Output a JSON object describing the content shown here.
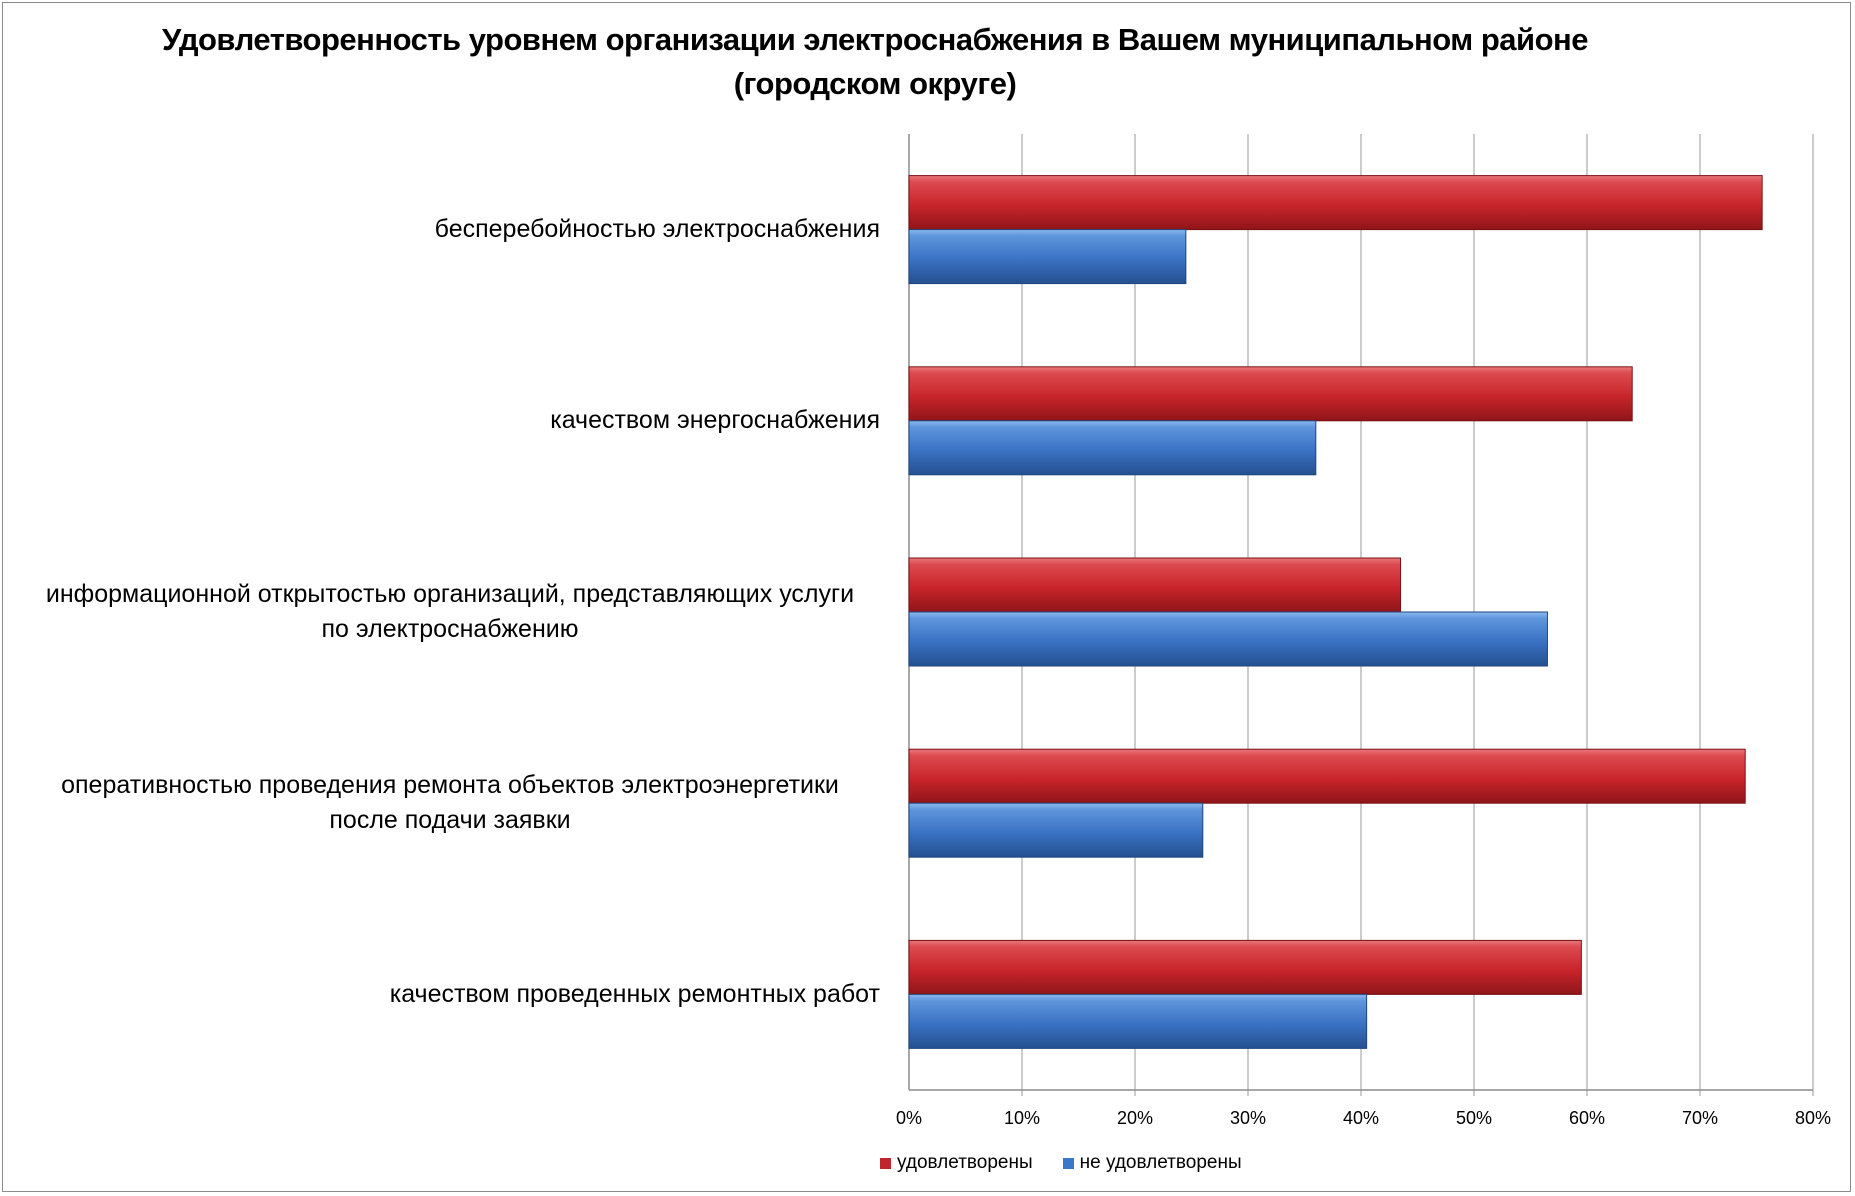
{
  "chart_data": {
    "type": "bar",
    "orientation": "horizontal",
    "title": "Удовлетворенность уровнем организации электроснабжения в Вашем муниципальном районе (городском округе)",
    "categories": [
      "бесперебойностью  электроснабжения",
      "качеством энергоснабжения",
      "информационной открытостью организаций, представляющих услуги по электроснабжению",
      "оперативностью проведения ремонта объектов электроэнергетики после подачи заявки",
      "качеством проведенных ремонтных работ"
    ],
    "series": [
      {
        "name": "удовлетворены",
        "color": "#c0272d",
        "values": [
          75.5,
          64,
          43.5,
          74,
          59.5
        ]
      },
      {
        "name": "не удовлетворены",
        "color": "#3a78c8",
        "values": [
          24.5,
          36,
          56.5,
          26,
          40.5
        ]
      }
    ],
    "xlim": [
      0,
      80
    ],
    "x_ticks": [
      "0%",
      "10%",
      "20%",
      "30%",
      "40%",
      "50%",
      "60%",
      "70%",
      "80%"
    ],
    "xlabel": "",
    "ylabel": "",
    "grid": true,
    "legend": "bottom"
  },
  "category_lines": [
    [
      "бесперебойностью  электроснабжения"
    ],
    [
      "качеством энергоснабжения"
    ],
    [
      "информационной открытостью организаций, представляющих услуги",
      "по электроснабжению"
    ],
    [
      "оперативностью проведения ремонта объектов электроэнергетики",
      "после подачи заявки"
    ],
    [
      "качеством проведенных ремонтных работ"
    ]
  ]
}
